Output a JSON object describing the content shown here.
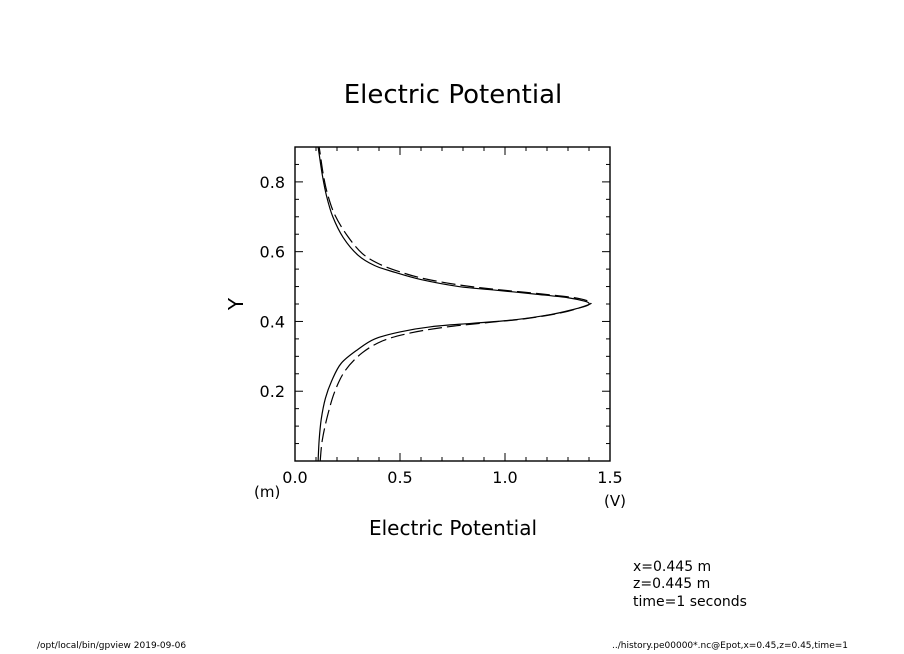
{
  "chart_data": {
    "type": "line",
    "title": "Electric Potential",
    "xlabel": "Electric Potential",
    "ylabel": "Y",
    "x_unit": "(V)",
    "y_unit": "(m)",
    "xlim": [
      0,
      1.5
    ],
    "ylim": [
      0.0,
      0.9
    ],
    "x_ticks": [
      0.0,
      0.5,
      1.0,
      1.5
    ],
    "x_tick_labels": [
      "0.0",
      "0.5",
      "1.0",
      "1.5"
    ],
    "y_ticks": [
      0.2,
      0.4,
      0.6,
      0.8
    ],
    "y_tick_labels": [
      "0.2",
      "0.4",
      "0.6",
      "0.8"
    ],
    "series": [
      {
        "name": "solid",
        "style": "solid",
        "points": [
          [
            0.11,
            0.0
          ],
          [
            0.115,
            0.06
          ],
          [
            0.125,
            0.12
          ],
          [
            0.145,
            0.18
          ],
          [
            0.175,
            0.23
          ],
          [
            0.22,
            0.28
          ],
          [
            0.3,
            0.32
          ],
          [
            0.38,
            0.35
          ],
          [
            0.5,
            0.37
          ],
          [
            0.65,
            0.385
          ],
          [
            0.85,
            0.395
          ],
          [
            1.05,
            0.405
          ],
          [
            1.22,
            0.42
          ],
          [
            1.33,
            0.435
          ],
          [
            1.39,
            0.445
          ],
          [
            1.4,
            0.452
          ],
          [
            1.38,
            0.458
          ],
          [
            1.3,
            0.468
          ],
          [
            1.15,
            0.478
          ],
          [
            0.95,
            0.49
          ],
          [
            0.78,
            0.5
          ],
          [
            0.6,
            0.52
          ],
          [
            0.48,
            0.54
          ],
          [
            0.38,
            0.56
          ],
          [
            0.3,
            0.59
          ],
          [
            0.23,
            0.64
          ],
          [
            0.18,
            0.7
          ],
          [
            0.15,
            0.76
          ],
          [
            0.13,
            0.82
          ],
          [
            0.115,
            0.88
          ],
          [
            0.11,
            0.9
          ]
        ]
      },
      {
        "name": "dashed",
        "style": "dashed",
        "points": [
          [
            0.12,
            0.0
          ],
          [
            0.13,
            0.06
          ],
          [
            0.155,
            0.13
          ],
          [
            0.19,
            0.2
          ],
          [
            0.24,
            0.26
          ],
          [
            0.32,
            0.31
          ],
          [
            0.42,
            0.345
          ],
          [
            0.55,
            0.367
          ],
          [
            0.72,
            0.384
          ],
          [
            0.92,
            0.397
          ],
          [
            1.1,
            0.408
          ],
          [
            1.27,
            0.425
          ],
          [
            1.36,
            0.44
          ],
          [
            1.41,
            0.452
          ],
          [
            1.39,
            0.46
          ],
          [
            1.32,
            0.469
          ],
          [
            1.17,
            0.479
          ],
          [
            0.97,
            0.491
          ],
          [
            0.8,
            0.503
          ],
          [
            0.62,
            0.522
          ],
          [
            0.5,
            0.542
          ],
          [
            0.4,
            0.565
          ],
          [
            0.32,
            0.595
          ],
          [
            0.25,
            0.645
          ],
          [
            0.19,
            0.705
          ],
          [
            0.155,
            0.765
          ],
          [
            0.135,
            0.82
          ],
          [
            0.12,
            0.88
          ],
          [
            0.115,
            0.9
          ]
        ]
      }
    ],
    "annotations": [
      "x=0.445  m",
      "z=0.445  m",
      "time=1  seconds"
    ]
  },
  "footer": {
    "left": "/opt/local/bin/gpview   2019-09-06",
    "right": "../history.pe00000*.nc@Epot,x=0.45,z=0.45,time=1"
  }
}
